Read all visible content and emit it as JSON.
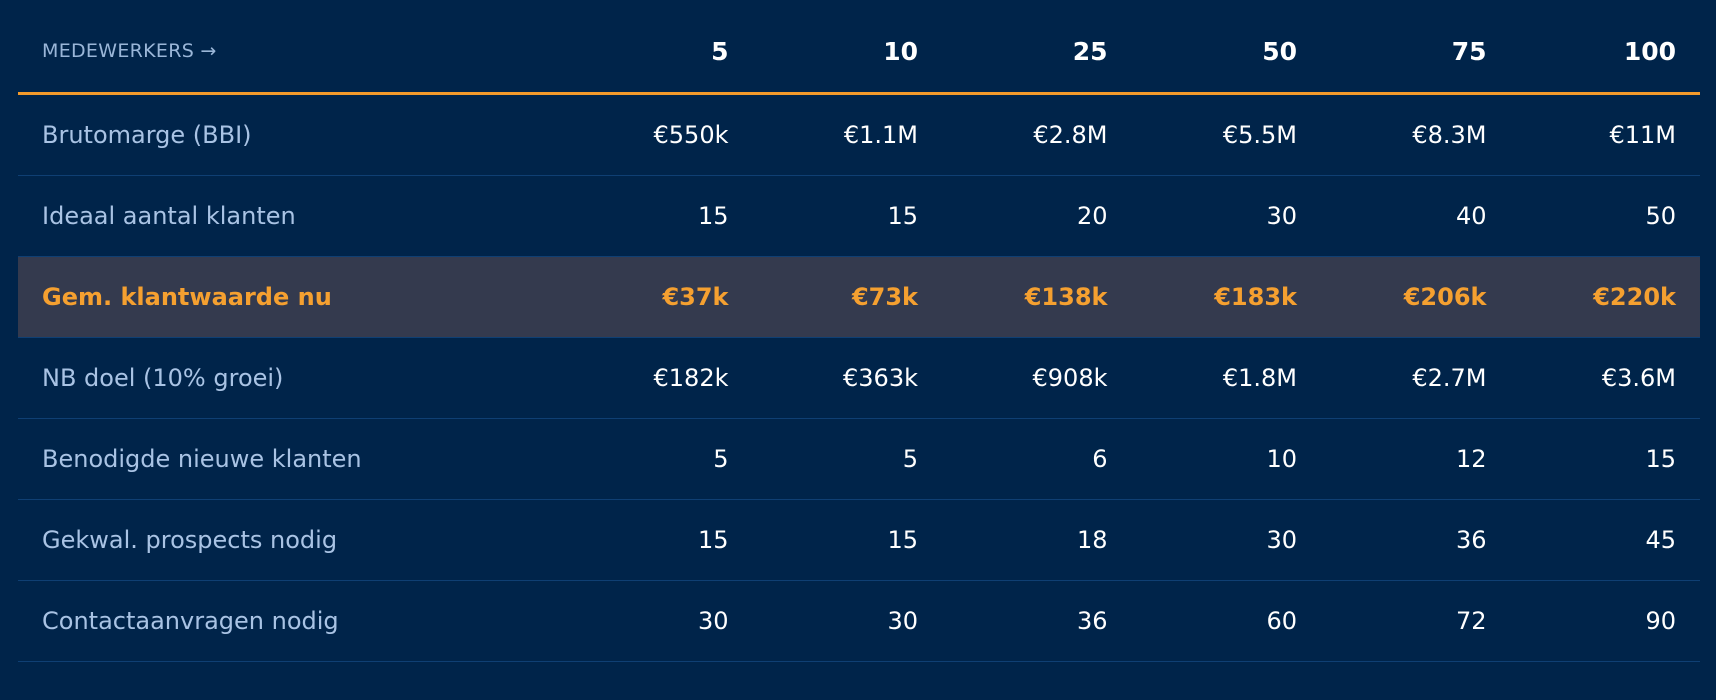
{
  "chart_data": {
    "type": "table",
    "header_label": "MEDEWERKERS →",
    "columns": [
      "5",
      "10",
      "25",
      "50",
      "75",
      "100"
    ],
    "rows": [
      {
        "label": "Brutomarge (BBI)",
        "values": [
          "€550k",
          "€1.1M",
          "€2.8M",
          "€5.5M",
          "€8.3M",
          "€11M"
        ],
        "highlight": false
      },
      {
        "label": "Ideaal aantal klanten",
        "values": [
          "15",
          "15",
          "20",
          "30",
          "40",
          "50"
        ],
        "highlight": false
      },
      {
        "label": "Gem. klantwaarde nu",
        "values": [
          "€37k",
          "€73k",
          "€138k",
          "€183k",
          "€206k",
          "€220k"
        ],
        "highlight": true
      },
      {
        "label": "NB doel (10% groei)",
        "values": [
          "€182k",
          "€363k",
          "€908k",
          "€1.8M",
          "€2.7M",
          "€3.6M"
        ],
        "highlight": false
      },
      {
        "label": "Benodigde nieuwe klanten",
        "values": [
          "5",
          "5",
          "6",
          "10",
          "12",
          "15"
        ],
        "highlight": false
      },
      {
        "label": "Gekwal. prospects nodig",
        "values": [
          "15",
          "15",
          "18",
          "30",
          "36",
          "45"
        ],
        "highlight": false
      },
      {
        "label": "Contactaanvragen nodig",
        "values": [
          "30",
          "30",
          "36",
          "60",
          "72",
          "90"
        ],
        "highlight": false
      }
    ]
  },
  "colors": {
    "background": "#00244a",
    "accent": "#f39a2b",
    "highlight_row_bg": "#343a4e",
    "label_text": "#a9c3e4",
    "value_text": "#ffffff"
  }
}
